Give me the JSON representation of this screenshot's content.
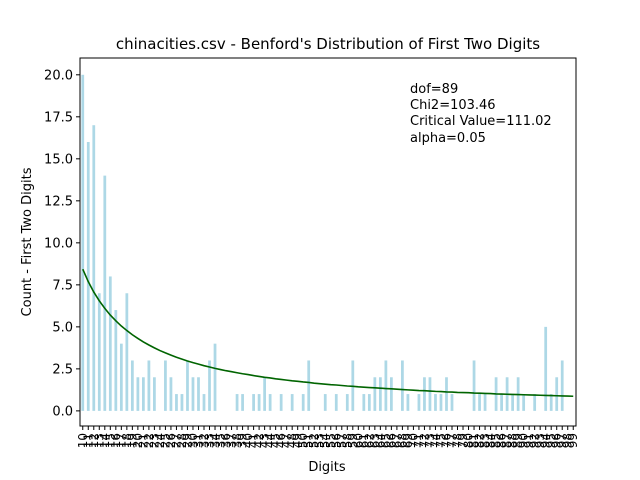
{
  "chart_data": {
    "type": "bar",
    "title": "chinacities.csv - Benford's Distribution of First Two Digits",
    "xlabel": "Digits",
    "ylabel": "Count - First Two Digits",
    "ylim": [
      -0.9,
      21.0
    ],
    "yticks": [
      "0.0",
      "2.5",
      "5.0",
      "7.5",
      "10.0",
      "12.5",
      "15.0",
      "17.5",
      "20.0"
    ],
    "grid": false,
    "bar_color": "#add8e6",
    "line_color": "#006400",
    "categories": [
      "10",
      "11",
      "12",
      "13",
      "14",
      "15",
      "16",
      "17",
      "18",
      "19",
      "20",
      "21",
      "22",
      "23",
      "24",
      "25",
      "26",
      "27",
      "28",
      "29",
      "30",
      "31",
      "32",
      "33",
      "34",
      "35",
      "36",
      "37",
      "38",
      "39",
      "40",
      "41",
      "42",
      "43",
      "44",
      "45",
      "46",
      "47",
      "48",
      "49",
      "50",
      "51",
      "52",
      "53",
      "54",
      "55",
      "56",
      "57",
      "58",
      "59",
      "60",
      "61",
      "62",
      "63",
      "64",
      "65",
      "66",
      "67",
      "68",
      "69",
      "70",
      "71",
      "72",
      "73",
      "74",
      "75",
      "76",
      "77",
      "78",
      "79",
      "80",
      "81",
      "82",
      "83",
      "84",
      "85",
      "86",
      "87",
      "88",
      "89",
      "90",
      "91",
      "92",
      "93",
      "94",
      "95",
      "96",
      "97",
      "98",
      "99"
    ],
    "series": [
      {
        "kind": "bar",
        "values": [
          20,
          16,
          17,
          7,
          14,
          8,
          6,
          4,
          7,
          3,
          2,
          2,
          3,
          2,
          0,
          3,
          2,
          1,
          1,
          3,
          2,
          2,
          1,
          3,
          4,
          0,
          0,
          0,
          1,
          1,
          0,
          1,
          1,
          2,
          1,
          0,
          1,
          0,
          1,
          0,
          1,
          3,
          0,
          0,
          1,
          0,
          1,
          0,
          1,
          3,
          0,
          1,
          1,
          2,
          2,
          3,
          2,
          0,
          3,
          1,
          0,
          1,
          2,
          2,
          1,
          1,
          2,
          1,
          0,
          0,
          0,
          3,
          1,
          1,
          0,
          2,
          1,
          2,
          1,
          2,
          1,
          0,
          1,
          0,
          5,
          1,
          2,
          3,
          0,
          0
        ]
      },
      {
        "kind": "line",
        "values": [
          8.43,
          7.69,
          7.07,
          6.55,
          6.1,
          5.7,
          5.36,
          5.05,
          4.78,
          4.53,
          4.31,
          4.1,
          3.92,
          3.75,
          3.59,
          3.45,
          3.32,
          3.19,
          3.08,
          2.97,
          2.87,
          2.78,
          2.69,
          2.61,
          2.53,
          2.46,
          2.39,
          2.33,
          2.27,
          2.21,
          2.16,
          2.1,
          2.05,
          2.0,
          1.96,
          1.91,
          1.87,
          1.83,
          1.79,
          1.76,
          1.72,
          1.69,
          1.65,
          1.62,
          1.59,
          1.56,
          1.54,
          1.51,
          1.48,
          1.46,
          1.43,
          1.41,
          1.39,
          1.37,
          1.35,
          1.33,
          1.31,
          1.29,
          1.27,
          1.25,
          1.23,
          1.21,
          1.2,
          1.18,
          1.16,
          1.15,
          1.13,
          1.12,
          1.1,
          1.09,
          1.08,
          1.06,
          1.05,
          1.04,
          1.03,
          1.01,
          1.0,
          0.99,
          0.98,
          0.97,
          0.96,
          0.95,
          0.94,
          0.93,
          0.92,
          0.91,
          0.9,
          0.89,
          0.88,
          0.87
        ]
      }
    ],
    "annotation": [
      "dof=89",
      "Chi2=103.46",
      "Critical Value=111.02",
      "alpha=0.05"
    ]
  }
}
